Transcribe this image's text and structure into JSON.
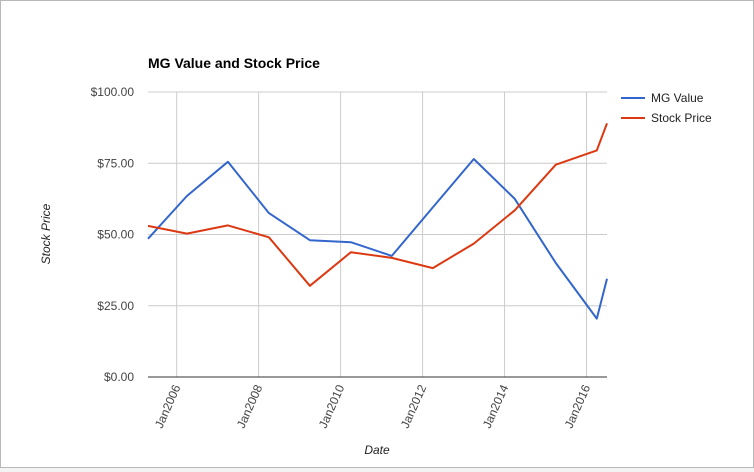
{
  "chart_data": {
    "type": "line",
    "title": "MG Value and Stock Price",
    "xlabel": "Date",
    "ylabel": "Stock Price",
    "ylim": [
      0,
      100
    ],
    "xlim": [
      2005.3,
      2016.5
    ],
    "y_ticks": [
      0,
      25,
      50,
      75,
      100
    ],
    "y_tick_labels": [
      "$0.00",
      "$25.00",
      "$50.00",
      "$75.00",
      "$100.00"
    ],
    "x_ticks": [
      2006,
      2008,
      2010,
      2012,
      2014,
      2016
    ],
    "x_tick_labels": [
      "Jan2006",
      "Jan2008",
      "Jan2010",
      "Jan2012",
      "Jan2014",
      "Jan2016"
    ],
    "grid": true,
    "legend_position": "right",
    "series": [
      {
        "name": "MG Value",
        "color": "#3366cc",
        "x": [
          2005.3,
          2006.25,
          2007.25,
          2008.25,
          2009.25,
          2010.25,
          2011.25,
          2012.25,
          2013.25,
          2014.25,
          2015.25,
          2016.25,
          2016.5
        ],
        "values": [
          48.5,
          63.5,
          75.5,
          57.5,
          48,
          47.3,
          42.5,
          59.5,
          76.5,
          62.5,
          40,
          20.5,
          34.5
        ]
      },
      {
        "name": "Stock Price",
        "color": "#dc3912",
        "x": [
          2005.3,
          2006.25,
          2007.25,
          2008.25,
          2009.25,
          2010.25,
          2011.25,
          2012.25,
          2013.25,
          2014.25,
          2015.25,
          2016.25,
          2016.5
        ],
        "values": [
          53,
          50.3,
          53.2,
          49,
          32,
          43.8,
          41.8,
          38.2,
          46.8,
          58.5,
          74.5,
          79.5,
          89
        ]
      }
    ]
  }
}
